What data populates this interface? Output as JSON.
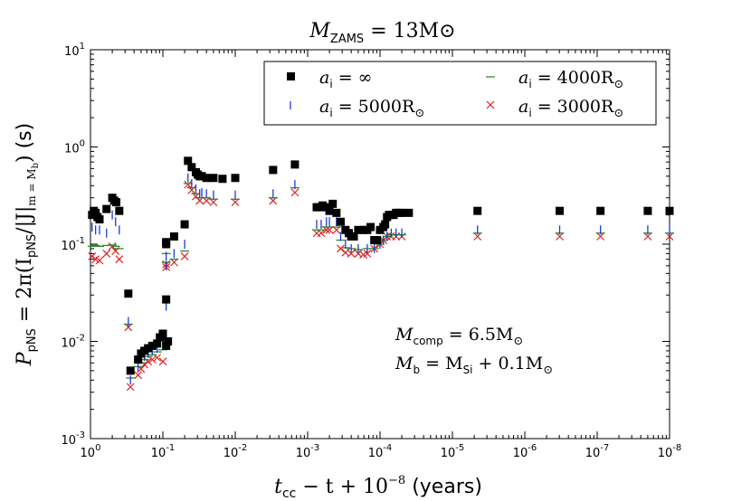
{
  "chart_data": {
    "type": "scatter",
    "title": "M_ZAMS = 13M_⊙",
    "title_main": "M",
    "title_sub": "ZAMS",
    "title_rest": " = 13M",
    "title_sun": "⊙",
    "xlabel": "t_cc − t + 10^-8 (years)",
    "xlabel_parts": {
      "t": "t",
      "cc": "cc",
      "mid": " − t + 10",
      "exp": "−8",
      "unit": " (years)"
    },
    "ylabel": "P_pNS = 2π(I_pNS/|J|_{m=M_b}) (s)",
    "ylabel_parts": {
      "p": "P",
      "psub": "pNS",
      "eq": " = 2π(I",
      "isub": "pNS",
      "j": "/|J|",
      "jsub": "m = M",
      "jsubsub": "b",
      "close": ")",
      "unit": " (s)"
    },
    "x_axis": {
      "scale": "log",
      "reversed": true,
      "range": [
        1,
        1e-08
      ],
      "ticks": [
        1,
        0.1,
        0.01,
        0.001,
        0.0001,
        1e-05,
        1e-06,
        1e-07,
        1e-08
      ],
      "tick_labels": [
        {
          "base": "10",
          "exp": "0"
        },
        {
          "base": "10",
          "exp": "-1"
        },
        {
          "base": "10",
          "exp": "-2"
        },
        {
          "base": "10",
          "exp": "-3"
        },
        {
          "base": "10",
          "exp": "-4"
        },
        {
          "base": "10",
          "exp": "-5"
        },
        {
          "base": "10",
          "exp": "-6"
        },
        {
          "base": "10",
          "exp": "-7"
        },
        {
          "base": "10",
          "exp": "-8"
        }
      ]
    },
    "y_axis": {
      "scale": "log",
      "range": [
        0.001,
        10
      ],
      "ticks": [
        0.001,
        0.01,
        0.1,
        1,
        10
      ],
      "tick_labels": [
        {
          "base": "10",
          "exp": "-3"
        },
        {
          "base": "10",
          "exp": "-2"
        },
        {
          "base": "10",
          "exp": "-1"
        },
        {
          "base": "10",
          "exp": "0"
        },
        {
          "base": "10",
          "exp": "1"
        }
      ]
    },
    "legend": {
      "location": "top-right",
      "entries": [
        {
          "series": "inf",
          "label_var": "a",
          "label_sub": "i",
          "label_rest": " = ∞",
          "label_sun": ""
        },
        {
          "series": "a5000",
          "label_var": "a",
          "label_sub": "i",
          "label_rest": " = 5000R",
          "label_sun": "⊙"
        },
        {
          "series": "a4000",
          "label_var": "a",
          "label_sub": "i",
          "label_rest": " = 4000R",
          "label_sun": "⊙"
        },
        {
          "series": "a3000",
          "label_var": "a",
          "label_sub": "i",
          "label_rest": " = 3000R",
          "label_sun": "⊙"
        }
      ]
    },
    "annotations": {
      "line1": {
        "var": "M",
        "sub": "comp",
        "rest": " = 6.5M",
        "sun": "⊙"
      },
      "line2": {
        "var": "M",
        "sub": "b",
        "mid": " = M",
        "sub2": "Si",
        "rest": " + 0.1M",
        "sun": "⊙"
      }
    },
    "series": [
      {
        "name": "a_i = ∞",
        "id": "inf",
        "marker": "square",
        "color": "#000000",
        "x": [
          0.95,
          0.9,
          0.85,
          0.8,
          0.75,
          0.6,
          0.5,
          0.47,
          0.44,
          0.4,
          0.3,
          0.28,
          0.22,
          0.2,
          0.18,
          0.16,
          0.14,
          0.12,
          0.11,
          0.1,
          0.09,
          0.09,
          0.09,
          0.09,
          0.085,
          0.07,
          0.05,
          0.045,
          0.04,
          0.035,
          0.033,
          0.031,
          0.03,
          0.029,
          0.025,
          0.02,
          0.015,
          0.01,
          0.003,
          0.0015,
          0.00075,
          0.0007,
          0.00062,
          0.00055,
          0.0005,
          0.00045,
          0.0004,
          0.00035,
          0.0003,
          0.00027,
          0.00025,
          0.00023,
          0.0002,
          0.00017,
          0.00015,
          0.000135,
          0.00012,
          0.00011,
          0.0001,
          9e-05,
          8.5e-05,
          8e-05,
          7.5e-05,
          7e-05,
          6.5e-05,
          6e-05,
          5.5e-05,
          5e-05,
          4e-05,
          4.5e-06,
          3.3e-07,
          9e-08,
          2e-08,
          1e-08
        ],
        "y": [
          0.2,
          0.22,
          0.21,
          0.19,
          0.18,
          0.23,
          0.3,
          0.28,
          0.27,
          0.22,
          0.031,
          0.005,
          0.0065,
          0.0075,
          0.008,
          0.0085,
          0.009,
          0.0095,
          0.011,
          0.012,
          0.009,
          0.105,
          0.1,
          0.027,
          0.01,
          0.12,
          0.16,
          0.72,
          0.62,
          0.55,
          0.52,
          0.5,
          0.5,
          0.5,
          0.48,
          0.48,
          0.47,
          0.48,
          0.58,
          0.66,
          0.24,
          0.24,
          0.25,
          0.24,
          0.22,
          0.26,
          0.21,
          0.17,
          0.14,
          0.13,
          0.12,
          0.12,
          0.14,
          0.14,
          0.14,
          0.15,
          0.11,
          0.11,
          0.14,
          0.15,
          0.16,
          0.19,
          0.2,
          0.2,
          0.2,
          0.21,
          0.21,
          0.21,
          0.21,
          0.22,
          0.22,
          0.22,
          0.22,
          0.22
        ]
      },
      {
        "name": "a_i = 5000R_⊙",
        "id": "a5000",
        "marker": "vline",
        "color": "#1f3bd1",
        "x": [
          0.95,
          0.85,
          0.75,
          0.6,
          0.5,
          0.45,
          0.4,
          0.3,
          0.28,
          0.22,
          0.2,
          0.18,
          0.16,
          0.14,
          0.12,
          0.1,
          0.09,
          0.09,
          0.09,
          0.07,
          0.05,
          0.045,
          0.04,
          0.035,
          0.031,
          0.029,
          0.025,
          0.02,
          0.01,
          0.003,
          0.0015,
          0.00075,
          0.00065,
          0.00055,
          0.0005,
          0.0004,
          0.00035,
          0.0003,
          0.00025,
          0.0002,
          0.00015,
          0.00012,
          0.0001,
          9e-05,
          8e-05,
          7e-05,
          6e-05,
          5e-05,
          4.5e-06,
          3.3e-07,
          9e-08,
          2e-08,
          1e-08
        ],
        "y": [
          0.15,
          0.14,
          0.14,
          0.13,
          0.2,
          0.17,
          0.14,
          0.016,
          0.004,
          0.0055,
          0.0065,
          0.007,
          0.0075,
          0.008,
          0.0085,
          0.0095,
          0.06,
          0.075,
          0.023,
          0.08,
          0.1,
          0.48,
          0.42,
          0.37,
          0.33,
          0.34,
          0.33,
          0.32,
          0.32,
          0.33,
          0.41,
          0.16,
          0.16,
          0.17,
          0.17,
          0.17,
          0.12,
          0.1,
          0.09,
          0.09,
          0.09,
          0.09,
          0.1,
          0.11,
          0.12,
          0.13,
          0.13,
          0.13,
          0.14,
          0.14,
          0.14,
          0.14,
          0.14
        ]
      },
      {
        "name": "a_i = 4000R_⊙",
        "id": "a4000",
        "marker": "hline",
        "color": "#2e8b2e",
        "x": [
          0.95,
          0.85,
          0.75,
          0.6,
          0.5,
          0.45,
          0.4,
          0.3,
          0.28,
          0.22,
          0.2,
          0.18,
          0.16,
          0.14,
          0.12,
          0.1,
          0.09,
          0.09,
          0.07,
          0.05,
          0.045,
          0.04,
          0.035,
          0.031,
          0.025,
          0.02,
          0.01,
          0.003,
          0.0015,
          0.00075,
          0.00065,
          0.00055,
          0.0005,
          0.0004,
          0.00035,
          0.0003,
          0.00025,
          0.0002,
          0.00015,
          0.00012,
          0.0001,
          9e-05,
          8e-05,
          7e-05,
          6e-05,
          5e-05,
          4.5e-06,
          3.3e-07,
          9e-08,
          2e-08,
          1e-08
        ],
        "y": [
          0.095,
          0.097,
          0.095,
          0.097,
          0.098,
          0.095,
          0.09,
          0.015,
          0.0042,
          0.0055,
          0.006,
          0.0065,
          0.007,
          0.0073,
          0.0078,
          0.0082,
          0.065,
          0.08,
          0.07,
          0.085,
          0.42,
          0.38,
          0.33,
          0.3,
          0.3,
          0.29,
          0.29,
          0.3,
          0.38,
          0.14,
          0.14,
          0.15,
          0.15,
          0.15,
          0.11,
          0.092,
          0.09,
          0.088,
          0.09,
          0.09,
          0.1,
          0.11,
          0.12,
          0.125,
          0.125,
          0.125,
          0.13,
          0.13,
          0.13,
          0.13,
          0.13
        ]
      },
      {
        "name": "a_i = 3000R_⊙",
        "id": "a3000",
        "marker": "x",
        "color": "#e02020",
        "x": [
          0.95,
          0.85,
          0.75,
          0.6,
          0.5,
          0.45,
          0.4,
          0.3,
          0.28,
          0.22,
          0.2,
          0.18,
          0.16,
          0.14,
          0.12,
          0.1,
          0.09,
          0.09,
          0.07,
          0.05,
          0.045,
          0.04,
          0.035,
          0.031,
          0.025,
          0.02,
          0.01,
          0.003,
          0.0015,
          0.00075,
          0.00065,
          0.00055,
          0.0005,
          0.0004,
          0.00035,
          0.0003,
          0.00025,
          0.0002,
          0.00017,
          0.00015,
          0.00012,
          0.0001,
          9e-05,
          8e-05,
          7e-05,
          6e-05,
          5e-05,
          4.5e-06,
          3.3e-07,
          9e-08,
          2e-08,
          1e-08
        ],
        "y": [
          0.075,
          0.07,
          0.068,
          0.08,
          0.095,
          0.085,
          0.07,
          0.014,
          0.0034,
          0.0045,
          0.0052,
          0.0058,
          0.0062,
          0.0065,
          0.0068,
          0.0062,
          0.058,
          0.062,
          0.065,
          0.075,
          0.41,
          0.36,
          0.31,
          0.28,
          0.28,
          0.27,
          0.27,
          0.28,
          0.34,
          0.13,
          0.13,
          0.14,
          0.14,
          0.14,
          0.09,
          0.082,
          0.08,
          0.08,
          0.078,
          0.08,
          0.09,
          0.1,
          0.11,
          0.12,
          0.12,
          0.12,
          0.12,
          0.12,
          0.12,
          0.12,
          0.12,
          0.12
        ]
      }
    ]
  }
}
